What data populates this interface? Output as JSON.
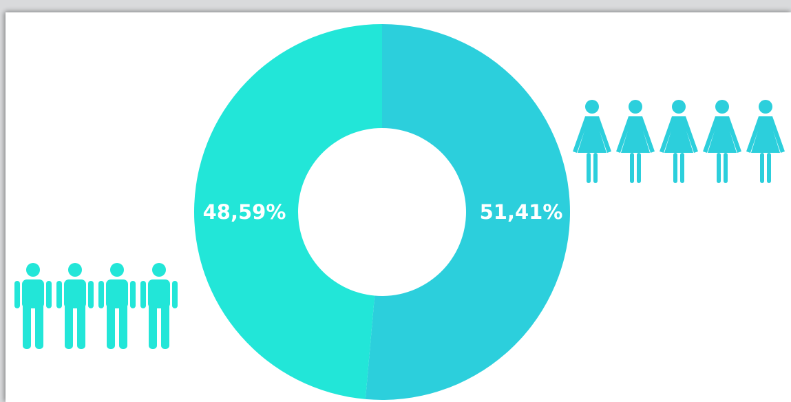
{
  "chart_data": {
    "type": "pie",
    "style": "donut",
    "categories": [
      "",
      ""
    ],
    "values": [
      51.41,
      48.59
    ],
    "data_labels": [
      "51,41%",
      "48,59%"
    ],
    "colors": [
      "#2ccfdc",
      "#22e6d8"
    ],
    "title": "",
    "legend": "icons",
    "icons": [
      {
        "name": "woman-icon",
        "count": 5,
        "color": "#2ccfdc"
      },
      {
        "name": "man-icon",
        "count": 4,
        "color": "#22e6d8"
      }
    ]
  }
}
